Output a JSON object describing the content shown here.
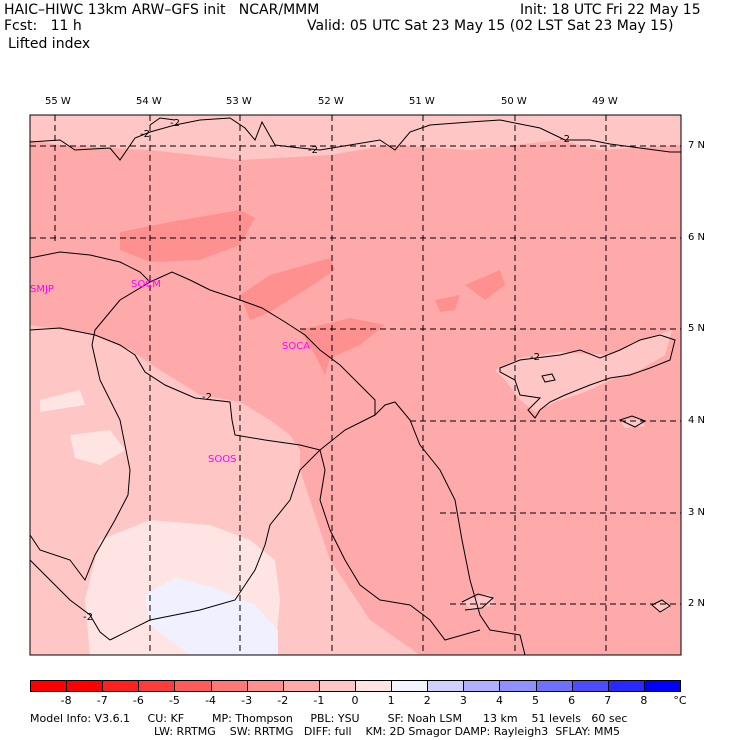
{
  "header": {
    "title_left": "HAIC–HIWC 13km ARW–GFS init   NCAR/MMM",
    "fcst": "Fcst:   11 h",
    "field": "Lifted index",
    "init": "Init: 18 UTC Fri 22 May 15",
    "valid": "Valid: 05 UTC Sat 23 May 15 (02 LST Sat 23 May 15)"
  },
  "map": {
    "lon_labels": [
      "55 W",
      "54 W",
      "53 W",
      "52 W",
      "51 W",
      "50 W",
      "49 W"
    ],
    "lat_labels": [
      "7 N",
      "6 N",
      "5 N",
      "4 N",
      "3 N",
      "2 N"
    ],
    "stations": [
      "SMJP",
      "SOCM",
      "SOCA",
      "SOOS"
    ],
    "contour_labels": [
      "-2",
      "-2",
      "-2",
      "-2",
      "-2",
      "-2",
      "-2"
    ]
  },
  "colorbar": {
    "ticks": [
      "-8",
      "-7",
      "-6",
      "-5",
      "-4",
      "-3",
      "-2",
      "-1",
      "0",
      "1",
      "2",
      "3",
      "4",
      "5",
      "6",
      "7",
      "8"
    ],
    "unit": "°C",
    "colors": [
      "#ff0000",
      "#ff2020",
      "#ff3c3c",
      "#ff5a5a",
      "#ff7878",
      "#ff9090",
      "#ffaaaa",
      "#ffc6c6",
      "#ffe4e4",
      "#f4f4ff",
      "#d0d0ff",
      "#b0b0ff",
      "#9090ff",
      "#7070ff",
      "#4c4cff",
      "#2828ff",
      "#0000ff"
    ]
  },
  "footer": {
    "line1": "Model Info: V3.6.1     CU: KF        MP: Thompson     PBL: YSU        SF: Noah LSM      13 km    51 levels   60 sec",
    "line2": "LW: RRTMG    SW: RRTMG   DIFF: full    KM: 2D Smagor DAMP: Rayleigh3  SFLAY: MM5"
  }
}
